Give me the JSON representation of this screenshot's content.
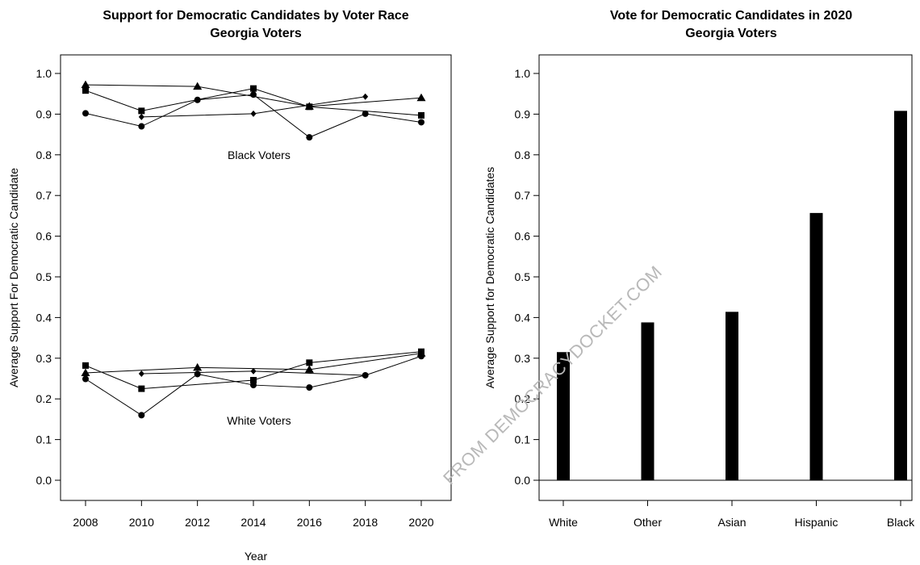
{
  "watermark": "FROM DEMOCRACYDOCKET.COM",
  "chart_data": [
    {
      "type": "line",
      "title": "Support for Democratic Candidates by Voter Race",
      "subtitle": "Georgia Voters",
      "xlabel": "Year",
      "ylabel": "Average Support For Democratic Candidate",
      "xlim": [
        2008,
        2020
      ],
      "ylim": [
        0,
        1
      ],
      "xticks": [
        "2008",
        "2010",
        "2012",
        "2014",
        "2016",
        "2018",
        "2020"
      ],
      "yticks": [
        "0.0",
        "0.1",
        "0.2",
        "0.3",
        "0.4",
        "0.5",
        "0.6",
        "0.7",
        "0.8",
        "0.9",
        "1.0"
      ],
      "grid": false,
      "annotations": [
        {
          "text": "Black Voters",
          "x": 2014.2,
          "y": 0.8
        },
        {
          "text": "White Voters",
          "x": 2014.2,
          "y": 0.147
        }
      ],
      "series": [
        {
          "group": "black",
          "marker": "triangle",
          "x": [
            2008,
            2012,
            2016,
            2020
          ],
          "y": [
            0.972,
            0.968,
            0.919,
            0.94
          ]
        },
        {
          "group": "black",
          "marker": "square",
          "x": [
            2008,
            2010,
            2014,
            2016,
            2020
          ],
          "y": [
            0.958,
            0.908,
            0.963,
            0.918,
            0.897
          ]
        },
        {
          "group": "black",
          "marker": "circle",
          "x": [
            2008,
            2010,
            2012,
            2014,
            2016,
            2018,
            2020
          ],
          "y": [
            0.902,
            0.87,
            0.935,
            0.948,
            0.843,
            0.901,
            0.88
          ]
        },
        {
          "group": "black",
          "marker": "diamond",
          "x": [
            2010,
            2014,
            2018
          ],
          "y": [
            0.893,
            0.901,
            0.943
          ]
        },
        {
          "group": "white",
          "marker": "triangle",
          "x": [
            2008,
            2012,
            2016,
            2020
          ],
          "y": [
            0.264,
            0.277,
            0.272,
            0.312
          ]
        },
        {
          "group": "white",
          "marker": "square",
          "x": [
            2008,
            2010,
            2014,
            2016,
            2020
          ],
          "y": [
            0.282,
            0.225,
            0.246,
            0.289,
            0.316
          ]
        },
        {
          "group": "white",
          "marker": "circle",
          "x": [
            2008,
            2010,
            2012,
            2014,
            2016,
            2018,
            2020
          ],
          "y": [
            0.249,
            0.16,
            0.261,
            0.234,
            0.228,
            0.258,
            0.305
          ]
        },
        {
          "group": "white",
          "marker": "diamond",
          "x": [
            2010,
            2014,
            2018
          ],
          "y": [
            0.262,
            0.268,
            0.258
          ]
        }
      ]
    },
    {
      "type": "bar",
      "title": "Vote for Democratic Candidates in 2020",
      "subtitle": "Georgia Voters",
      "xlabel": "",
      "ylabel": "Average Support for Democratic Candidates",
      "ylim": [
        0,
        1
      ],
      "yticks": [
        "0.0",
        "0.1",
        "0.2",
        "0.3",
        "0.4",
        "0.5",
        "0.6",
        "0.7",
        "0.8",
        "0.9",
        "1.0"
      ],
      "grid": false,
      "categories": [
        "White",
        "Other",
        "Asian",
        "Hispanic",
        "Black"
      ],
      "values": [
        0.315,
        0.388,
        0.414,
        0.657,
        0.908
      ],
      "bar_color": "#000000"
    }
  ]
}
